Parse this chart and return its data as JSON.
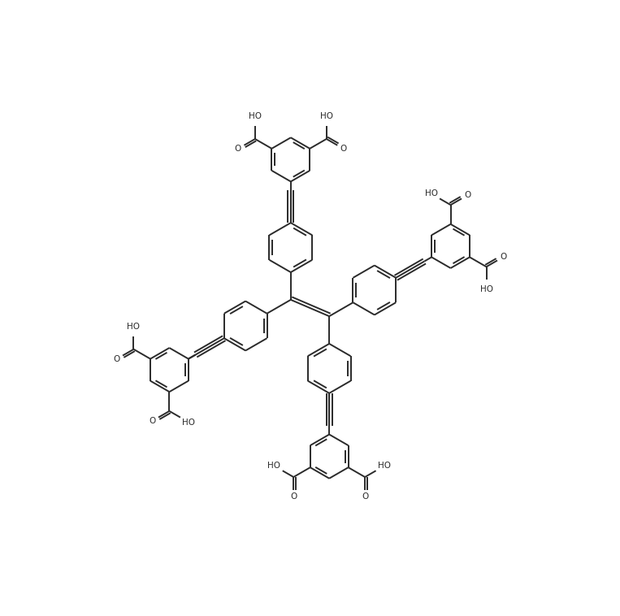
{
  "bg_color": "#ffffff",
  "line_color": "#2a2a2a",
  "line_width": 1.4,
  "font_size": 7.5,
  "figsize": [
    7.63,
    7.58
  ],
  "dpi": 100,
  "xlim": [
    -55,
    55
  ],
  "ylim": [
    -55,
    55
  ]
}
